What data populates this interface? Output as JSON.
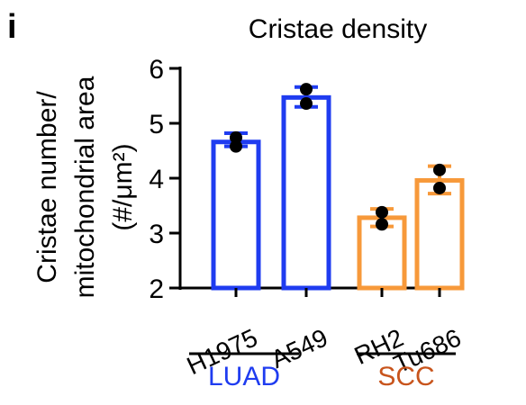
{
  "panel_label": "i",
  "chart_data": {
    "type": "bar",
    "title": "Cristae density",
    "ylabel_lines": [
      "Cristae number/",
      "mitochondrial area",
      "(#/μm²)"
    ],
    "xlabel": "",
    "ylim": [
      2,
      6
    ],
    "yticks": [
      2,
      3,
      4,
      5,
      6
    ],
    "categories": [
      "H1975",
      "A549",
      "RH2",
      "Tu686"
    ],
    "values": [
      4.66,
      5.47,
      3.28,
      3.96
    ],
    "error_high": [
      4.82,
      5.66,
      3.44,
      4.22
    ],
    "error_low": [
      4.58,
      5.3,
      3.12,
      3.72
    ],
    "points": [
      [
        4.74,
        4.58
      ],
      [
        5.62,
        5.36
      ],
      [
        3.38,
        3.16
      ],
      [
        4.15,
        3.82
      ]
    ],
    "bar_colors": [
      "#1f3cf0",
      "#1f3cf0",
      "#f7993a",
      "#f7993a"
    ],
    "groups": [
      {
        "label": "LUAD",
        "color": "#1f3cf0",
        "members": [
          "H1975",
          "A549"
        ]
      },
      {
        "label": "SCC",
        "color": "#c8541c",
        "members": [
          "RH2",
          "Tu686"
        ]
      }
    ],
    "grid": false,
    "legend": "none"
  }
}
